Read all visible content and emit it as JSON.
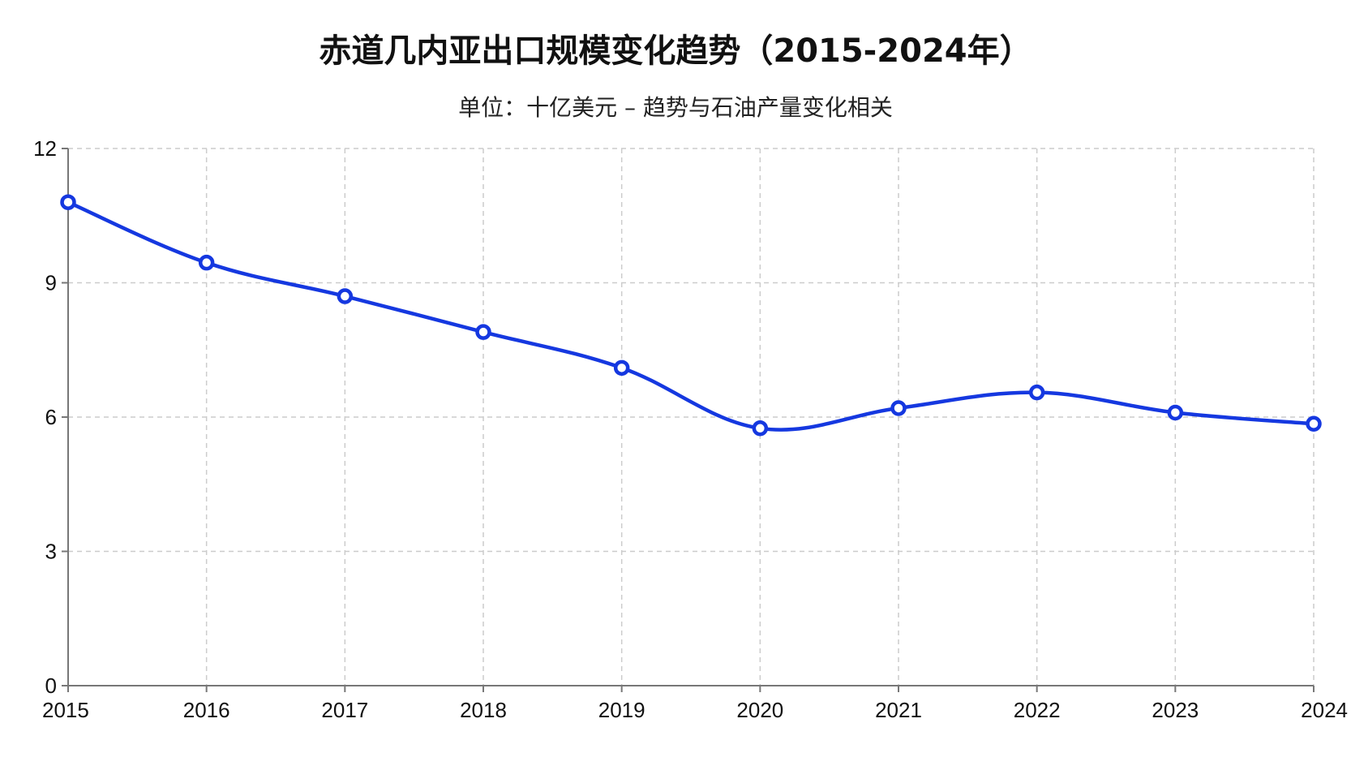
{
  "chart_data": {
    "type": "line",
    "title": "赤道几内亚出口规模变化趋势（2015-2024年）",
    "subtitle": "单位：十亿美元 – 趋势与石油产量变化相关",
    "xlabel": "",
    "ylabel": "",
    "categories": [
      "2015",
      "2016",
      "2017",
      "2018",
      "2019",
      "2020",
      "2021",
      "2022",
      "2023",
      "2024"
    ],
    "series": [
      {
        "values": [
          10.8,
          9.45,
          8.7,
          7.9,
          7.1,
          5.75,
          6.2,
          6.55,
          6.1,
          5.85
        ]
      }
    ],
    "ylim": [
      0,
      12
    ],
    "yticks": [
      "0",
      "3",
      "6",
      "9",
      "12"
    ],
    "grid": true,
    "smooth": true,
    "line_color": "#1538e0",
    "marker_fill": "#ffffff"
  }
}
